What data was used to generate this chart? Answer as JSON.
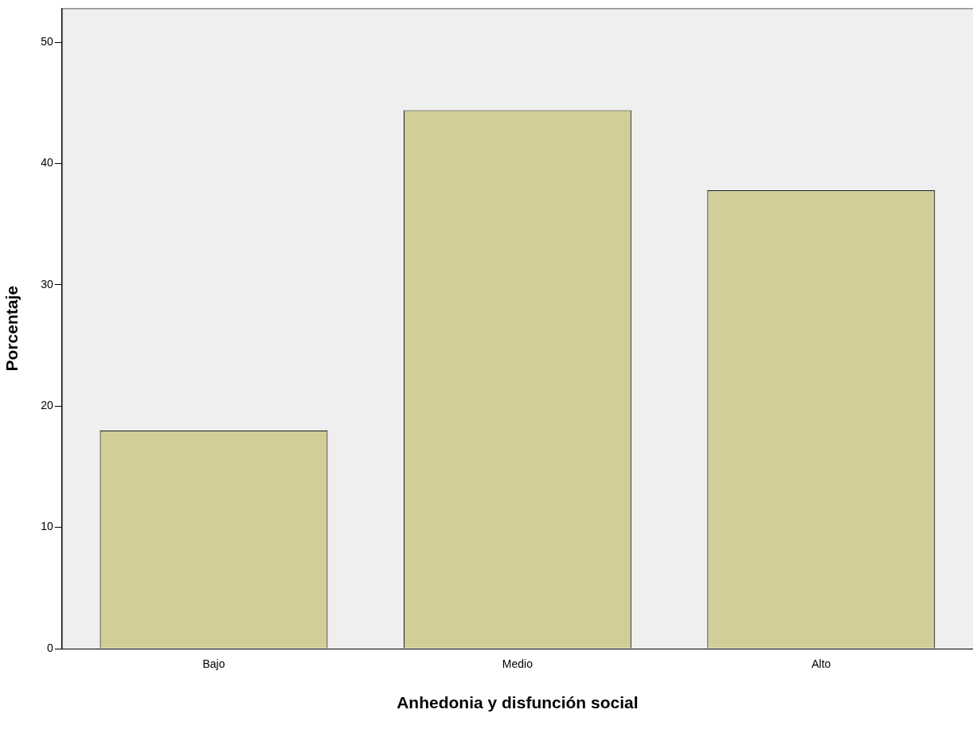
{
  "chart_data": {
    "type": "bar",
    "xlabel": "Anhedonia y disfunción social",
    "ylabel": "Porcentaje",
    "categories": [
      "Bajo",
      "Medio",
      "Alto"
    ],
    "values": [
      18.0,
      44.4,
      37.8
    ],
    "color": "#d3cd98",
    "ylim": [
      0,
      52.8
    ],
    "yticks": [
      0,
      10,
      20,
      30,
      40,
      50
    ],
    "grid": false,
    "legend": false
  }
}
